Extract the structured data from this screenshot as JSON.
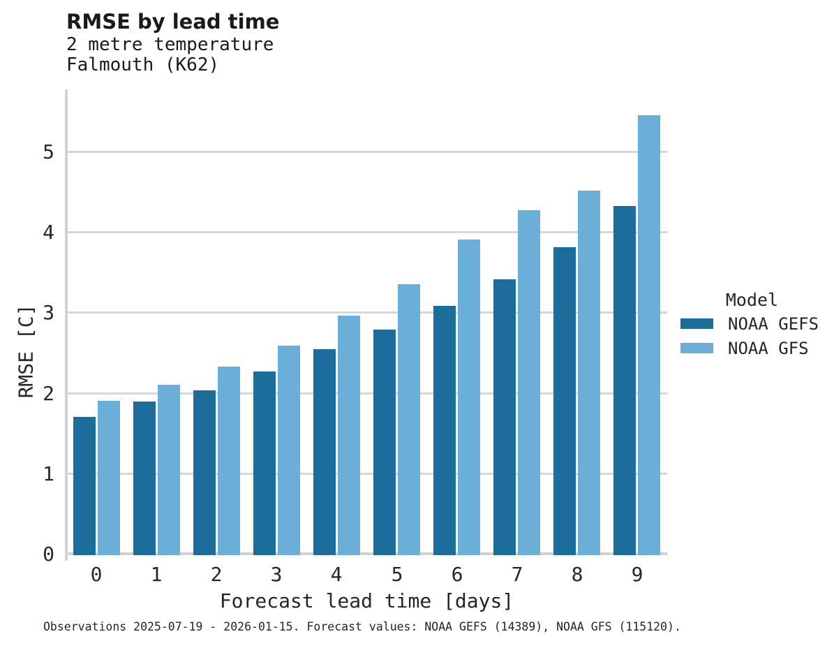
{
  "header": {
    "title": "RMSE by lead time",
    "subtitle_variable": "2 metre temperature",
    "subtitle_station": "Falmouth (K62)"
  },
  "chart_data": {
    "type": "bar",
    "title": "RMSE by lead time",
    "subtitle": [
      "2 metre temperature",
      "Falmouth (K62)"
    ],
    "categories": [
      "0",
      "1",
      "2",
      "3",
      "4",
      "5",
      "6",
      "7",
      "8",
      "9"
    ],
    "series": [
      {
        "name": "NOAA GEFS",
        "color": "#1c6d9c",
        "values": [
          1.72,
          1.91,
          2.05,
          2.28,
          2.56,
          2.8,
          3.1,
          3.43,
          3.83,
          4.34
        ]
      },
      {
        "name": "NOAA GFS",
        "color": "#6bafd8",
        "values": [
          1.92,
          2.12,
          2.34,
          2.6,
          2.98,
          3.37,
          3.92,
          4.29,
          4.53,
          5.47
        ]
      }
    ],
    "xlabel": "Forecast lead time [days]",
    "ylabel": "RMSE [C]",
    "ylim": [
      0,
      5.77
    ],
    "yticks": [
      0,
      1,
      2,
      3,
      4,
      5
    ],
    "grid": "horizontal",
    "legend_title": "Model",
    "legend_position": "right"
  },
  "legend": {
    "title": "Model",
    "entries": [
      {
        "label": "NOAA GEFS",
        "color": "#1c6d9c"
      },
      {
        "label": "NOAA GFS",
        "color": "#6bafd8"
      }
    ]
  },
  "footer": {
    "caption": "Observations 2025-07-19 - 2026-01-15. Forecast values: NOAA GEFS (14389), NOAA GFS (115120)."
  },
  "colors": {
    "series_dark": "#1c6d9c",
    "series_light": "#6bafd8",
    "gridline": "#d7d7d7",
    "spine": "#d2d2d2",
    "text": "#262626"
  }
}
